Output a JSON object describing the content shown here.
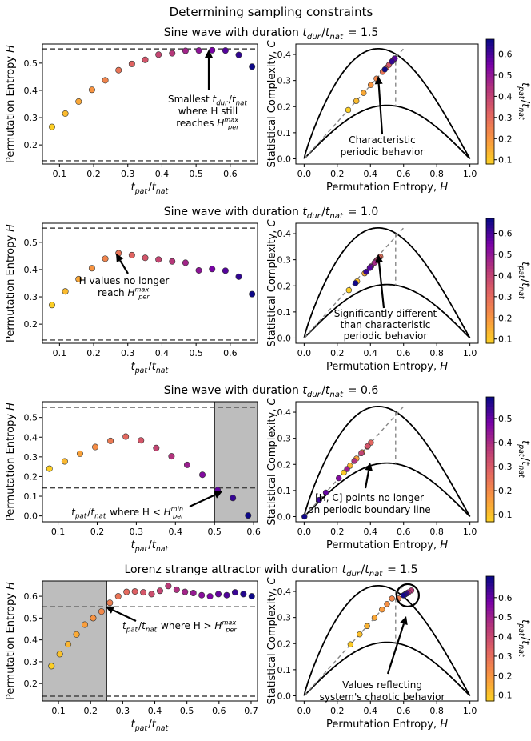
{
  "title": "Determining sampling constraints",
  "colorbar": {
    "label": "t_pat/t_nat"
  },
  "panels": [
    {
      "title": "Sine wave with duration t_dur/t_nat = 1.5",
      "left": {
        "annotation": [
          "Smallest t_dur/t_nat",
          "where H still",
          "reaches H_per^max"
        ],
        "chart_data": {
          "type": "scatter",
          "xlabel": "t_pat/t_nat",
          "ylabel": "Permutation Entropy H",
          "xlim": [
            0.05,
            0.68
          ],
          "ylim": [
            0.13,
            0.57
          ],
          "xticks": [
            0.1,
            0.2,
            0.3,
            0.4,
            0.5,
            0.6
          ],
          "yticks": [
            0.2,
            0.3,
            0.4,
            0.5
          ],
          "hlines": [
            0.142,
            0.552
          ],
          "x": [
            0.078,
            0.117,
            0.156,
            0.195,
            0.234,
            0.273,
            0.312,
            0.351,
            0.39,
            0.43,
            0.469,
            0.508,
            0.547,
            0.586,
            0.625,
            0.664
          ],
          "y": [
            0.266,
            0.315,
            0.359,
            0.402,
            0.437,
            0.474,
            0.497,
            0.512,
            0.531,
            0.536,
            0.545,
            0.546,
            0.547,
            0.546,
            0.53,
            0.487
          ]
        }
      },
      "right": {
        "annotation": [
          "Characteristic",
          "periodic behavior"
        ],
        "chart_data": {
          "type": "scatter",
          "xlabel": "Permutation Entropy, H",
          "ylabel": "Statistical Complexity, C",
          "xlim": [
            -0.05,
            1.05
          ],
          "ylim": [
            -0.02,
            0.44
          ],
          "xticks": [
            0.0,
            0.2,
            0.4,
            0.6,
            0.8,
            1.0
          ],
          "yticks": [
            0.0,
            0.1,
            0.2,
            0.3,
            0.4
          ],
          "colorbar_ticks": [
            0.1,
            0.2,
            0.3,
            0.4,
            0.5,
            0.6
          ],
          "colorbar_range": [
            0.08,
            0.67
          ]
        }
      }
    },
    {
      "title": "Sine wave with duration t_dur/t_nat = 1.0",
      "left": {
        "annotation": [
          "H values no longer",
          "reach H_per^max"
        ],
        "chart_data": {
          "type": "scatter",
          "xlabel": "t_pat/t_nat",
          "ylabel": "Permutation Entropy H",
          "xlim": [
            0.05,
            0.68
          ],
          "ylim": [
            0.13,
            0.57
          ],
          "xticks": [
            0.1,
            0.2,
            0.3,
            0.4,
            0.5,
            0.6
          ],
          "yticks": [
            0.2,
            0.3,
            0.4,
            0.5
          ],
          "hlines": [
            0.142,
            0.552
          ],
          "x": [
            0.078,
            0.117,
            0.156,
            0.195,
            0.234,
            0.273,
            0.312,
            0.351,
            0.39,
            0.43,
            0.469,
            0.508,
            0.547,
            0.586,
            0.625,
            0.664
          ],
          "y": [
            0.27,
            0.32,
            0.365,
            0.405,
            0.44,
            0.46,
            0.453,
            0.443,
            0.437,
            0.43,
            0.425,
            0.397,
            0.402,
            0.396,
            0.374,
            0.31
          ]
        }
      },
      "right": {
        "annotation": [
          "Significantly different",
          "than characteristic",
          "periodic behavior"
        ],
        "chart_data": {
          "type": "scatter",
          "xlabel": "Permutation Entropy, H",
          "ylabel": "Statistical Complexity, C",
          "xlim": [
            -0.05,
            1.05
          ],
          "ylim": [
            -0.02,
            0.44
          ],
          "xticks": [
            0.0,
            0.2,
            0.4,
            0.6,
            0.8,
            1.0
          ],
          "yticks": [
            0.0,
            0.1,
            0.2,
            0.3,
            0.4
          ],
          "colorbar_ticks": [
            0.1,
            0.2,
            0.3,
            0.4,
            0.5,
            0.6
          ],
          "colorbar_range": [
            0.08,
            0.67
          ]
        }
      }
    },
    {
      "title": "Sine wave with duration t_dur/t_nat = 0.6",
      "left": {
        "annotation": [
          "t_pat/t_nat where H < H_per^min"
        ],
        "chart_data": {
          "type": "scatter",
          "xlabel": "t_pat/t_nat",
          "ylabel": "Permutation Entropy H",
          "xlim": [
            0.06,
            0.61
          ],
          "ylim": [
            -0.03,
            0.58
          ],
          "xticks": [
            0.1,
            0.2,
            0.3,
            0.4,
            0.5,
            0.6
          ],
          "yticks": [
            0.0,
            0.1,
            0.2,
            0.3,
            0.4,
            0.5
          ],
          "hlines": [
            0.142,
            0.552
          ],
          "shaded_x": [
            0.5,
            0.61
          ],
          "x": [
            0.078,
            0.117,
            0.156,
            0.195,
            0.234,
            0.273,
            0.312,
            0.351,
            0.39,
            0.43,
            0.469,
            0.508,
            0.547,
            0.586
          ],
          "y": [
            0.24,
            0.277,
            0.316,
            0.35,
            0.381,
            0.403,
            0.384,
            0.345,
            0.303,
            0.259,
            0.209,
            0.131,
            0.091,
            0.002
          ]
        }
      },
      "right": {
        "annotation": [
          "[H, C] points no longer",
          "on periodic boundary line"
        ],
        "chart_data": {
          "type": "scatter",
          "xlabel": "Permutation Entropy, H",
          "ylabel": "Statistical Complexity, C",
          "xlim": [
            -0.05,
            1.05
          ],
          "ylim": [
            -0.02,
            0.44
          ],
          "xticks": [
            0.0,
            0.2,
            0.4,
            0.6,
            0.8,
            1.0
          ],
          "yticks": [
            0.0,
            0.1,
            0.2,
            0.3,
            0.4
          ],
          "colorbar_ticks": [
            0.1,
            0.2,
            0.3,
            0.4,
            0.5
          ],
          "colorbar_range": [
            0.07,
            0.59
          ]
        }
      }
    },
    {
      "title": "Lorenz strange attractor with duration t_dur/t_nat = 1.5",
      "left": {
        "annotation": [
          "t_pat/t_nat where H > H_per^max"
        ],
        "chart_data": {
          "type": "scatter",
          "xlabel": "t_pat/t_nat",
          "ylabel": "Permutation Entropy H",
          "xlim": [
            0.05,
            0.72
          ],
          "ylim": [
            0.12,
            0.67
          ],
          "xticks": [
            0.1,
            0.2,
            0.3,
            0.4,
            0.5,
            0.6,
            0.7
          ],
          "yticks": [
            0.2,
            0.3,
            0.4,
            0.5,
            0.6
          ],
          "hlines": [
            0.142,
            0.552
          ],
          "shaded_x": [
            0.05,
            0.25
          ],
          "x": [
            0.078,
            0.104,
            0.13,
            0.156,
            0.182,
            0.208,
            0.234,
            0.26,
            0.286,
            0.312,
            0.338,
            0.364,
            0.39,
            0.416,
            0.442,
            0.468,
            0.494,
            0.52,
            0.546,
            0.572,
            0.598,
            0.624,
            0.65,
            0.676,
            0.702
          ],
          "y": [
            0.28,
            0.335,
            0.38,
            0.425,
            0.47,
            0.5,
            0.53,
            0.57,
            0.6,
            0.62,
            0.622,
            0.618,
            0.61,
            0.625,
            0.647,
            0.63,
            0.62,
            0.615,
            0.605,
            0.6,
            0.61,
            0.605,
            0.618,
            0.61,
            0.6
          ]
        }
      },
      "right": {
        "annotation": [
          "Values reflecting",
          "system's chaotic behavior"
        ],
        "chart_data": {
          "type": "scatter",
          "xlabel": "Permutation Entropy, H",
          "ylabel": "Statistical Complexity, C",
          "xlim": [
            -0.05,
            1.05
          ],
          "ylim": [
            -0.02,
            0.44
          ],
          "xticks": [
            0.0,
            0.2,
            0.4,
            0.6,
            0.8,
            1.0
          ],
          "yticks": [
            0.0,
            0.1,
            0.2,
            0.3,
            0.4
          ],
          "colorbar_ticks": [
            0.1,
            0.2,
            0.3,
            0.4,
            0.5,
            0.6
          ],
          "colorbar_range": [
            0.07,
            0.71
          ]
        }
      }
    }
  ]
}
